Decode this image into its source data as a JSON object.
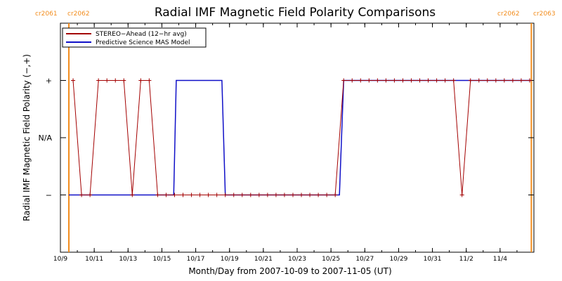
{
  "chart_data": {
    "type": "line",
    "title": "Radial IMF Magnetic Field Polarity Comparisons",
    "xlabel": "Month/Day from 2007-10-09 to 2007-11-05 (UT)",
    "ylabel": "Radial IMF Magnetic Field Polarity (−,+)",
    "x_ticks": [
      "10/9",
      "10/11",
      "10/13",
      "10/15",
      "10/17",
      "10/19",
      "10/21",
      "10/23",
      "10/25",
      "10/27",
      "10/29",
      "10/31",
      "11/2",
      "11/4"
    ],
    "y_ticks": [
      "+",
      "N/A",
      "−"
    ],
    "xlim": [
      "2007-10-09",
      "2007-11-05"
    ],
    "ylim": [
      -2,
      2
    ],
    "grid": false,
    "legend_position": "top-left",
    "carrington_markers": [
      {
        "label_left": "cr2061",
        "label_right": "cr2062",
        "date": "2007-10-09.5",
        "color": "#f28c1c"
      },
      {
        "label_left": "cr2062",
        "label_right": "cr2063",
        "date": "2007-11-05.85",
        "color": "#f28c1c"
      }
    ],
    "series": [
      {
        "name": "STEREO−Ahead (12−hr avg)",
        "color": "#a30000",
        "marker": "+",
        "x": [
          "2007-10-09.75",
          "2007-10-10.25",
          "2007-10-10.75",
          "2007-10-11.25",
          "2007-10-11.75",
          "2007-10-12.25",
          "2007-10-12.75",
          "2007-10-13.25",
          "2007-10-13.75",
          "2007-10-14.25",
          "2007-10-14.75",
          "2007-10-15.25",
          "2007-10-15.75",
          "2007-10-16.25",
          "2007-10-16.75",
          "2007-10-17.25",
          "2007-10-17.75",
          "2007-10-18.25",
          "2007-10-18.75",
          "2007-10-19.25",
          "2007-10-19.75",
          "2007-10-20.25",
          "2007-10-20.75",
          "2007-10-21.25",
          "2007-10-21.75",
          "2007-10-22.25",
          "2007-10-22.75",
          "2007-10-23.25",
          "2007-10-23.75",
          "2007-10-24.25",
          "2007-10-24.75",
          "2007-10-25.25",
          "2007-10-25.75",
          "2007-10-26.25",
          "2007-10-26.75",
          "2007-10-27.25",
          "2007-10-27.75",
          "2007-10-28.25",
          "2007-10-28.75",
          "2007-10-29.25",
          "2007-10-29.75",
          "2007-10-30.25",
          "2007-10-30.75",
          "2007-10-31.25",
          "2007-10-31.75",
          "2007-11-01.25",
          "2007-11-01.75",
          "2007-11-02.25",
          "2007-11-02.75",
          "2007-11-03.25",
          "2007-11-03.75",
          "2007-11-04.25",
          "2007-11-04.75",
          "2007-11-05.25",
          "2007-11-05.75"
        ],
        "y": [
          1,
          -1,
          -1,
          1,
          1,
          1,
          1,
          -1,
          1,
          1,
          -1,
          -1,
          -1,
          -1,
          -1,
          -1,
          -1,
          -1,
          -1,
          -1,
          -1,
          -1,
          -1,
          -1,
          -1,
          -1,
          -1,
          -1,
          -1,
          -1,
          -1,
          -1,
          1,
          1,
          1,
          1,
          1,
          1,
          1,
          1,
          1,
          1,
          1,
          1,
          1,
          1,
          -1,
          1,
          1,
          1,
          1,
          1,
          1,
          1,
          1
        ]
      },
      {
        "name": "Predictive Science MAS Model",
        "color": "#1010c8",
        "marker": "none",
        "x": [
          "2007-10-09.5",
          "2007-10-15.7",
          "2007-10-15.85",
          "2007-10-18.55",
          "2007-10-18.75",
          "2007-10-25.5",
          "2007-10-25.75",
          "2007-11-05.85"
        ],
        "y": [
          -1,
          -1,
          1,
          1,
          -1,
          -1,
          1,
          1
        ]
      }
    ]
  }
}
